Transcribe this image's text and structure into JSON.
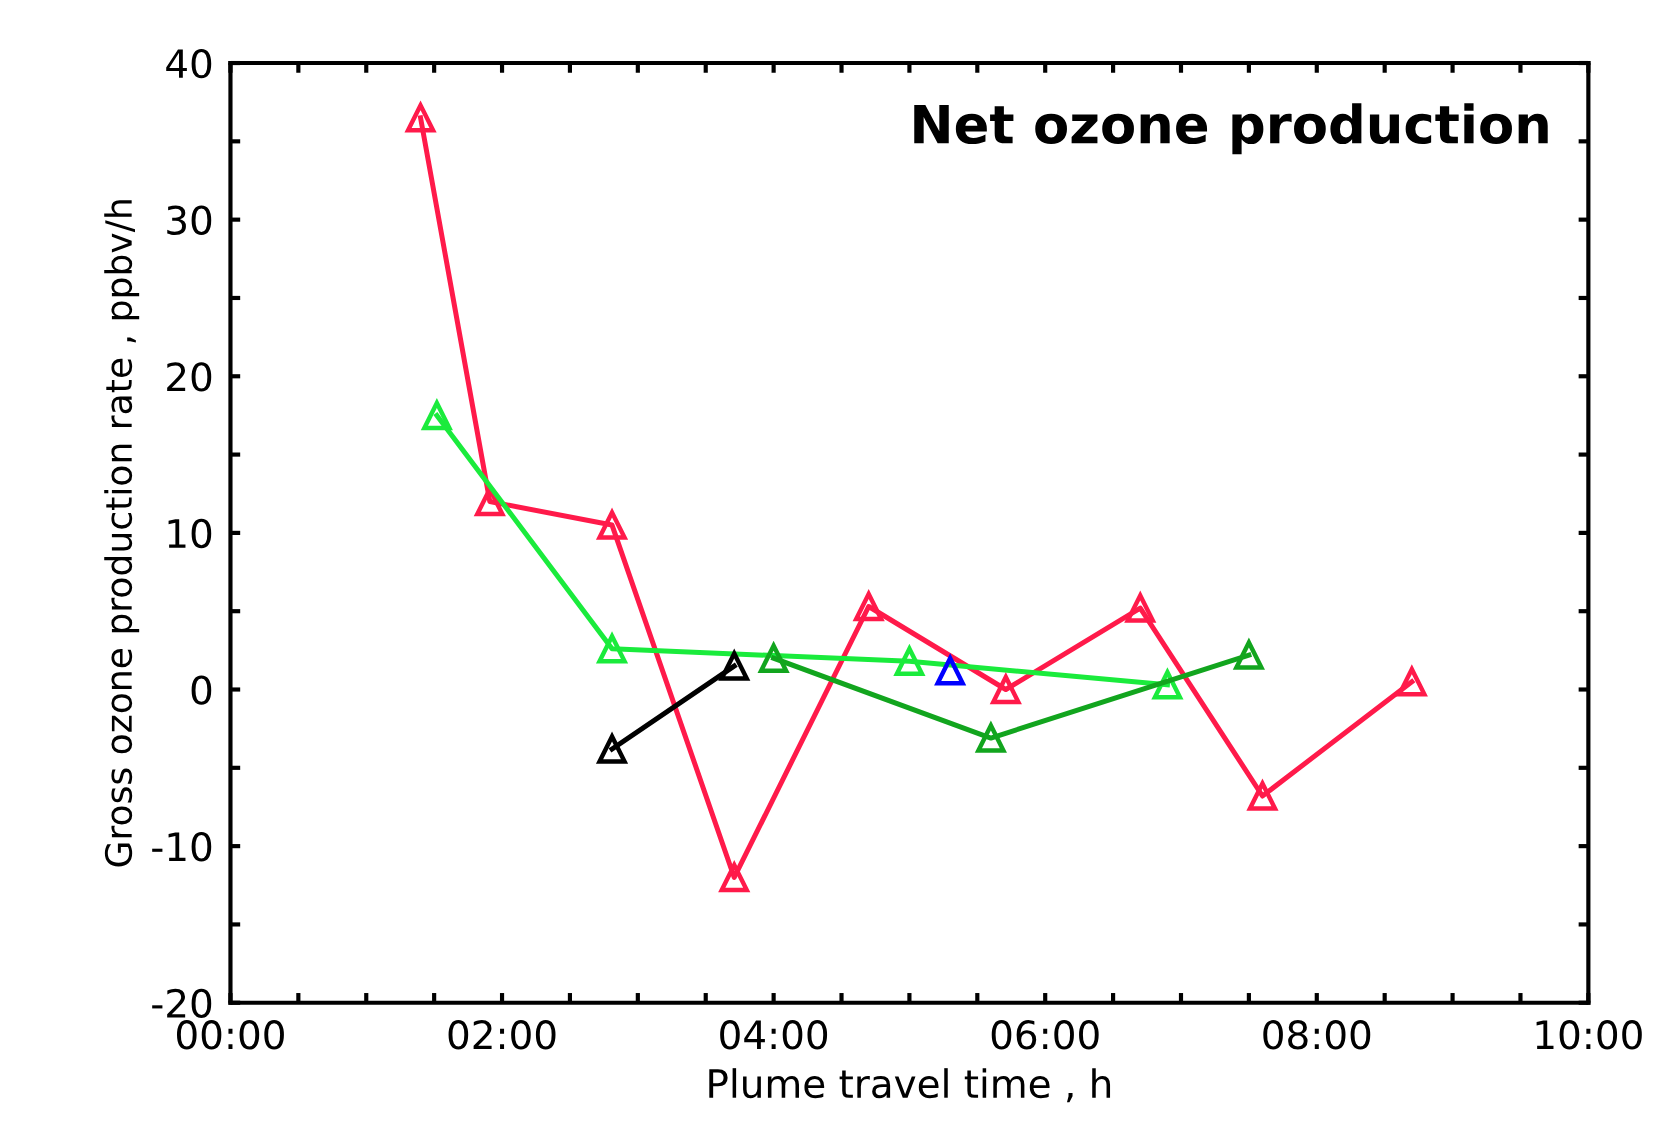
{
  "chart_data": {
    "type": "line",
    "title": "Net ozone production",
    "xlabel": "Plume travel time , h",
    "ylabel": "Gross ozone production rate , ppbv/h",
    "xlim": [
      0,
      10
    ],
    "ylim": [
      -20,
      40
    ],
    "xticks": [
      {
        "value": 0,
        "label": "00:00"
      },
      {
        "value": 0.5,
        "label": null
      },
      {
        "value": 1,
        "label": null
      },
      {
        "value": 1.5,
        "label": null
      },
      {
        "value": 2,
        "label": "02:00"
      },
      {
        "value": 2.5,
        "label": null
      },
      {
        "value": 3,
        "label": null
      },
      {
        "value": 3.5,
        "label": null
      },
      {
        "value": 4,
        "label": "04:00"
      },
      {
        "value": 4.5,
        "label": null
      },
      {
        "value": 5,
        "label": null
      },
      {
        "value": 5.5,
        "label": null
      },
      {
        "value": 6,
        "label": "06:00"
      },
      {
        "value": 6.5,
        "label": null
      },
      {
        "value": 7,
        "label": null
      },
      {
        "value": 7.5,
        "label": null
      },
      {
        "value": 8,
        "label": "08:00"
      },
      {
        "value": 8.5,
        "label": null
      },
      {
        "value": 9,
        "label": null
      },
      {
        "value": 9.5,
        "label": null
      },
      {
        "value": 10,
        "label": "10:00"
      }
    ],
    "yticks": [
      -20,
      {
        "value": -15,
        "label": null
      },
      -10,
      {
        "value": -5,
        "label": null
      },
      0,
      {
        "value": 5,
        "label": null
      },
      10,
      {
        "value": 15,
        "label": null
      },
      20,
      {
        "value": 25,
        "label": null
      },
      30,
      {
        "value": 35,
        "label": null
      },
      40
    ],
    "marker": "triangle",
    "line_style": "solid",
    "grid": false,
    "legend": false,
    "series": [
      {
        "color": "#ff1a4a",
        "x": [
          1.4,
          1.91,
          2.81,
          3.71,
          4.7,
          5.71,
          6.7,
          7.6,
          8.7
        ],
        "values": [
          36.5,
          12,
          10.5,
          -12,
          5.3,
          0,
          5.2,
          -6.8,
          0.5
        ]
      },
      {
        "color": "#1aeb3c",
        "x": [
          1.52,
          2.81,
          5.0,
          6.9
        ],
        "values": [
          17.5,
          2.6,
          1.8,
          0.3
        ]
      },
      {
        "color": "#12a51e",
        "x": [
          4.0,
          5.6,
          7.5
        ],
        "values": [
          2.0,
          -3.1,
          2.2
        ]
      },
      {
        "color": "#000000",
        "x": [
          2.81,
          3.71
        ],
        "values": [
          -3.8,
          1.5
        ]
      },
      {
        "color": "#0000ff",
        "x": [
          5.3
        ],
        "values": [
          1.2
        ]
      }
    ]
  }
}
